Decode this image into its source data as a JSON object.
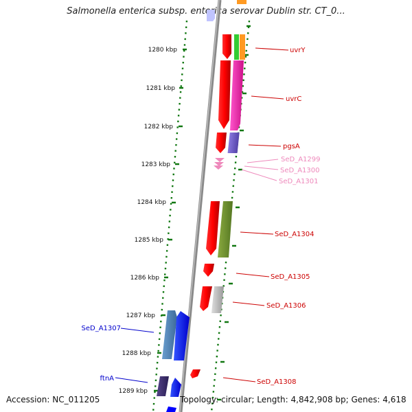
{
  "title": "Salmonella enterica subsp. enterica serovar Dublin str. CT_0...",
  "accession": "Accession: NC_011205",
  "summary": "Topology: circular; Length: 4,842,908 bp; Genes: 4,618",
  "ticks": [
    {
      "label": "1280 kbp",
      "kbp": 1280
    },
    {
      "label": "1281 kbp",
      "kbp": 1281
    },
    {
      "label": "1282 kbp",
      "kbp": 1282
    },
    {
      "label": "1283 kbp",
      "kbp": 1283
    },
    {
      "label": "1284 kbp",
      "kbp": 1284
    },
    {
      "label": "1285 kbp",
      "kbp": 1285
    },
    {
      "label": "1286 kbp",
      "kbp": 1286
    },
    {
      "label": "1287 kbp",
      "kbp": 1287
    },
    {
      "label": "1288 kbp",
      "kbp": 1288
    },
    {
      "label": "1289 kbp",
      "kbp": 1289
    }
  ],
  "gene_labels": [
    {
      "label": "uvrY",
      "color": "#cc0000"
    },
    {
      "label": "uvrC",
      "color": "#cc0000"
    },
    {
      "label": "pgsA",
      "color": "#cc0000"
    },
    {
      "label": "SeD_A1299",
      "color": "#ee88bb"
    },
    {
      "label": "SeD_A1300",
      "color": "#ee88bb"
    },
    {
      "label": "SeD_A1301",
      "color": "#ee88bb"
    },
    {
      "label": "SeD_A1304",
      "color": "#cc0000"
    },
    {
      "label": "SeD_A1305",
      "color": "#cc0000"
    },
    {
      "label": "SeD_A1306",
      "color": "#cc0000"
    },
    {
      "label": "SeD_A1308",
      "color": "#cc0000"
    },
    {
      "label": "SeD_A1307",
      "color": "#0000cc"
    },
    {
      "label": "ftnA",
      "color": "#0000cc"
    }
  ],
  "colors": {
    "backbone": "#8a8a8a",
    "tick": "#117711",
    "forward_strand": "#ff0000",
    "reverse_strand": "#0000ff"
  }
}
